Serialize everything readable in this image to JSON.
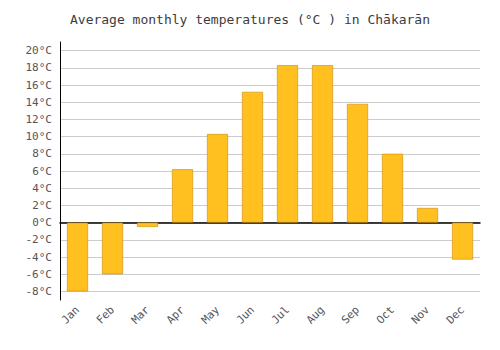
{
  "chart_data": {
    "type": "bar",
    "title": "Average monthly temperatures (°C ) in Chākarān",
    "categories": [
      "Jan",
      "Feb",
      "Mar",
      "Apr",
      "May",
      "Jun",
      "Jul",
      "Aug",
      "Sep",
      "Oct",
      "Nov",
      "Dec"
    ],
    "values": [
      -8,
      -6,
      -0.5,
      6.2,
      10.3,
      15.2,
      18.3,
      18.3,
      13.8,
      8.0,
      1.7,
      -4.3
    ],
    "color": "#FFC020",
    "ylim": [
      -9,
      21
    ],
    "yticks": [
      {
        "value": -8,
        "label": "-8°C"
      },
      {
        "value": -6,
        "label": "-6°C"
      },
      {
        "value": -4,
        "label": "-4°C"
      },
      {
        "value": -2,
        "label": "-2°C"
      },
      {
        "value": 0,
        "label": "0°C"
      },
      {
        "value": 2,
        "label": "2°C"
      },
      {
        "value": 4,
        "label": "4°C"
      },
      {
        "value": 6,
        "label": "6°C"
      },
      {
        "value": 8,
        "label": "8°C"
      },
      {
        "value": 10,
        "label": "10°C"
      },
      {
        "value": 12,
        "label": "12°C"
      },
      {
        "value": 14,
        "label": "14°C"
      },
      {
        "value": 16,
        "label": "16°C"
      },
      {
        "value": 18,
        "label": "18°C"
      },
      {
        "value": 20,
        "label": "20°C"
      }
    ],
    "grid": true
  }
}
